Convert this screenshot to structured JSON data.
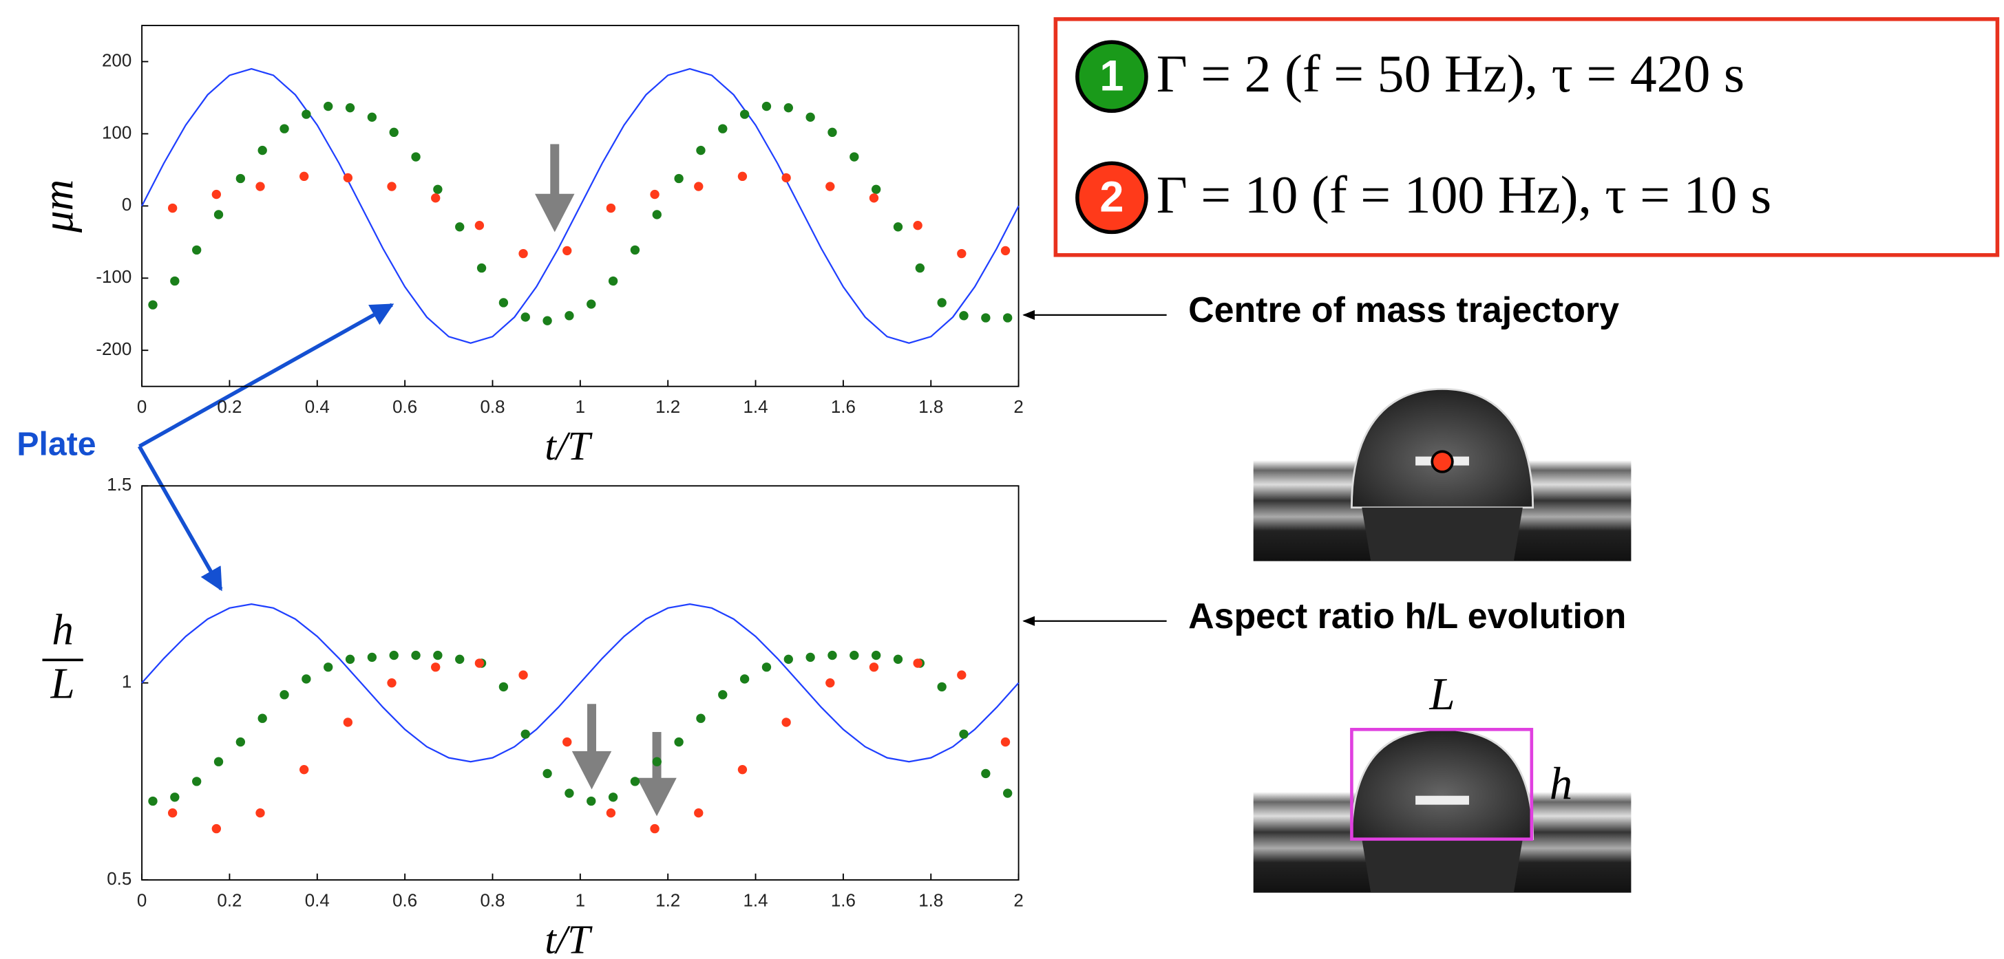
{
  "chart_data": [
    {
      "type": "line",
      "xlabel": "t/T",
      "ylabel": "μm",
      "xlim": [
        0,
        2
      ],
      "xticks": [
        0,
        0.2,
        0.4,
        0.6,
        0.8,
        1,
        1.2,
        1.4,
        1.6,
        1.8,
        2
      ],
      "ylim": [
        -250,
        250
      ],
      "yticks": [
        -200,
        -100,
        0,
        100,
        200
      ],
      "grid": false,
      "series": [
        {
          "style": "line",
          "color": "#1f3fff",
          "x": [
            0,
            0.05,
            0.1,
            0.15,
            0.2,
            0.25,
            0.3,
            0.35,
            0.4,
            0.45,
            0.5,
            0.55,
            0.6,
            0.65,
            0.7,
            0.75,
            0.8,
            0.85,
            0.9,
            0.95,
            1,
            1.05,
            1.1,
            1.15,
            1.2,
            1.25,
            1.3,
            1.35,
            1.4,
            1.45,
            1.5,
            1.55,
            1.6,
            1.65,
            1.7,
            1.75,
            1.8,
            1.85,
            1.9,
            1.95,
            2
          ],
          "values": [
            0,
            59,
            112,
            154,
            181,
            190,
            181,
            154,
            112,
            59,
            0,
            -59,
            -112,
            -154,
            -181,
            -190,
            -181,
            -154,
            -112,
            -59,
            0,
            59,
            112,
            154,
            181,
            190,
            181,
            154,
            112,
            59,
            0,
            -59,
            -112,
            -154,
            -181,
            -190,
            -181,
            -154,
            -112,
            -59,
            0
          ]
        },
        {
          "style": "markers",
          "color": "#1a7f1a",
          "x": [
            0.025,
            0.075,
            0.125,
            0.175,
            0.225,
            0.275,
            0.325,
            0.375,
            0.425,
            0.475,
            0.525,
            0.575,
            0.625,
            0.675,
            0.725,
            0.775,
            0.825,
            0.875,
            0.925,
            0.975,
            1.025,
            1.075,
            1.125,
            1.175,
            1.225,
            1.275,
            1.325,
            1.375,
            1.425,
            1.475,
            1.525,
            1.575,
            1.625,
            1.675,
            1.725,
            1.775,
            1.825,
            1.875,
            1.925,
            1.975
          ],
          "values": [
            -137,
            -104,
            -61,
            -12,
            38,
            77,
            107,
            127,
            138,
            136,
            123,
            102,
            68,
            23,
            -29,
            -86,
            -134,
            -154,
            -159,
            -152,
            -136,
            -104,
            -61,
            -12,
            38,
            77,
            107,
            127,
            138,
            136,
            123,
            102,
            68,
            23,
            -29,
            -86,
            -134,
            -152,
            -155,
            -155
          ]
        },
        {
          "style": "markers",
          "color": "#ff3a1a",
          "x": [
            0.07,
            0.17,
            0.27,
            0.37,
            0.47,
            0.57,
            0.67,
            0.77,
            0.87,
            0.97,
            1.07,
            1.17,
            1.27,
            1.37,
            1.47,
            1.57,
            1.67,
            1.77,
            1.87,
            1.97
          ],
          "values": [
            -3,
            16,
            27,
            41,
            39,
            27,
            11,
            -27,
            -66,
            -62,
            -3,
            16,
            27,
            41,
            39,
            27,
            11,
            -27,
            -66,
            -62
          ]
        }
      ]
    },
    {
      "type": "line",
      "xlabel": "t/T",
      "ylabel": {
        "numerator": "h",
        "denominator": "L"
      },
      "xlim": [
        0,
        2
      ],
      "xticks": [
        0,
        0.2,
        0.4,
        0.6,
        0.8,
        1,
        1.2,
        1.4,
        1.6,
        1.8,
        2
      ],
      "ylim": [
        0.5,
        1.5
      ],
      "yticks": [
        0.5,
        1,
        1.5
      ],
      "grid": false,
      "series": [
        {
          "style": "line",
          "color": "#1f3fff",
          "x": [
            0,
            0.05,
            0.1,
            0.15,
            0.2,
            0.25,
            0.3,
            0.35,
            0.4,
            0.45,
            0.5,
            0.55,
            0.6,
            0.65,
            0.7,
            0.75,
            0.8,
            0.85,
            0.9,
            0.95,
            1,
            1.05,
            1.1,
            1.15,
            1.2,
            1.25,
            1.3,
            1.35,
            1.4,
            1.45,
            1.5,
            1.55,
            1.6,
            1.65,
            1.7,
            1.75,
            1.8,
            1.85,
            1.9,
            1.95,
            2
          ],
          "values": [
            1,
            1.062,
            1.118,
            1.162,
            1.19,
            1.2,
            1.19,
            1.162,
            1.118,
            1.062,
            1,
            0.938,
            0.882,
            0.838,
            0.81,
            0.8,
            0.81,
            0.838,
            0.882,
            0.938,
            1,
            1.062,
            1.118,
            1.162,
            1.19,
            1.2,
            1.19,
            1.162,
            1.118,
            1.062,
            1,
            0.938,
            0.882,
            0.838,
            0.81,
            0.8,
            0.81,
            0.838,
            0.882,
            0.938,
            1
          ]
        },
        {
          "style": "markers",
          "color": "#1a7f1a",
          "x": [
            0.025,
            0.075,
            0.125,
            0.175,
            0.225,
            0.275,
            0.325,
            0.375,
            0.425,
            0.475,
            0.525,
            0.575,
            0.625,
            0.675,
            0.725,
            0.775,
            0.825,
            0.875,
            0.925,
            0.975,
            1.025,
            1.075,
            1.125,
            1.175,
            1.225,
            1.275,
            1.325,
            1.375,
            1.425,
            1.475,
            1.525,
            1.575,
            1.625,
            1.675,
            1.725,
            1.775,
            1.825,
            1.875,
            1.925,
            1.975
          ],
          "values": [
            0.7,
            0.71,
            0.75,
            0.8,
            0.85,
            0.91,
            0.97,
            1.01,
            1.04,
            1.06,
            1.065,
            1.07,
            1.07,
            1.07,
            1.06,
            1.05,
            0.99,
            0.87,
            0.77,
            0.72,
            0.7,
            0.71,
            0.75,
            0.8,
            0.85,
            0.91,
            0.97,
            1.01,
            1.04,
            1.06,
            1.065,
            1.07,
            1.07,
            1.07,
            1.06,
            1.05,
            0.99,
            0.87,
            0.77,
            0.72
          ]
        },
        {
          "style": "markers",
          "color": "#ff3a1a",
          "x": [
            0.07,
            0.17,
            0.27,
            0.37,
            0.47,
            0.57,
            0.67,
            0.77,
            0.87,
            0.97,
            1.07,
            1.17,
            1.27,
            1.37,
            1.47,
            1.57,
            1.67,
            1.77,
            1.87,
            1.97
          ],
          "values": [
            0.67,
            0.63,
            0.67,
            0.78,
            0.9,
            1,
            1.04,
            1.05,
            1.02,
            0.85,
            0.67,
            0.63,
            0.67,
            0.78,
            0.9,
            1,
            1.04,
            1.05,
            1.02,
            0.85
          ]
        }
      ]
    }
  ],
  "legend": {
    "items": [
      {
        "marker": "1",
        "color": "#1a9a1a",
        "label": "Γ = 2 (f = 50 Hz), τ = 420 s"
      },
      {
        "marker": "2",
        "color": "#ff3a1a",
        "label": "Γ = 10 (f = 100 Hz), τ = 10 s"
      }
    ]
  },
  "annotations": {
    "plate": "Plate",
    "centre": "Centre of mass trajectory",
    "aspect": "Aspect ratio h/L evolution",
    "length": "L",
    "height": "h"
  }
}
